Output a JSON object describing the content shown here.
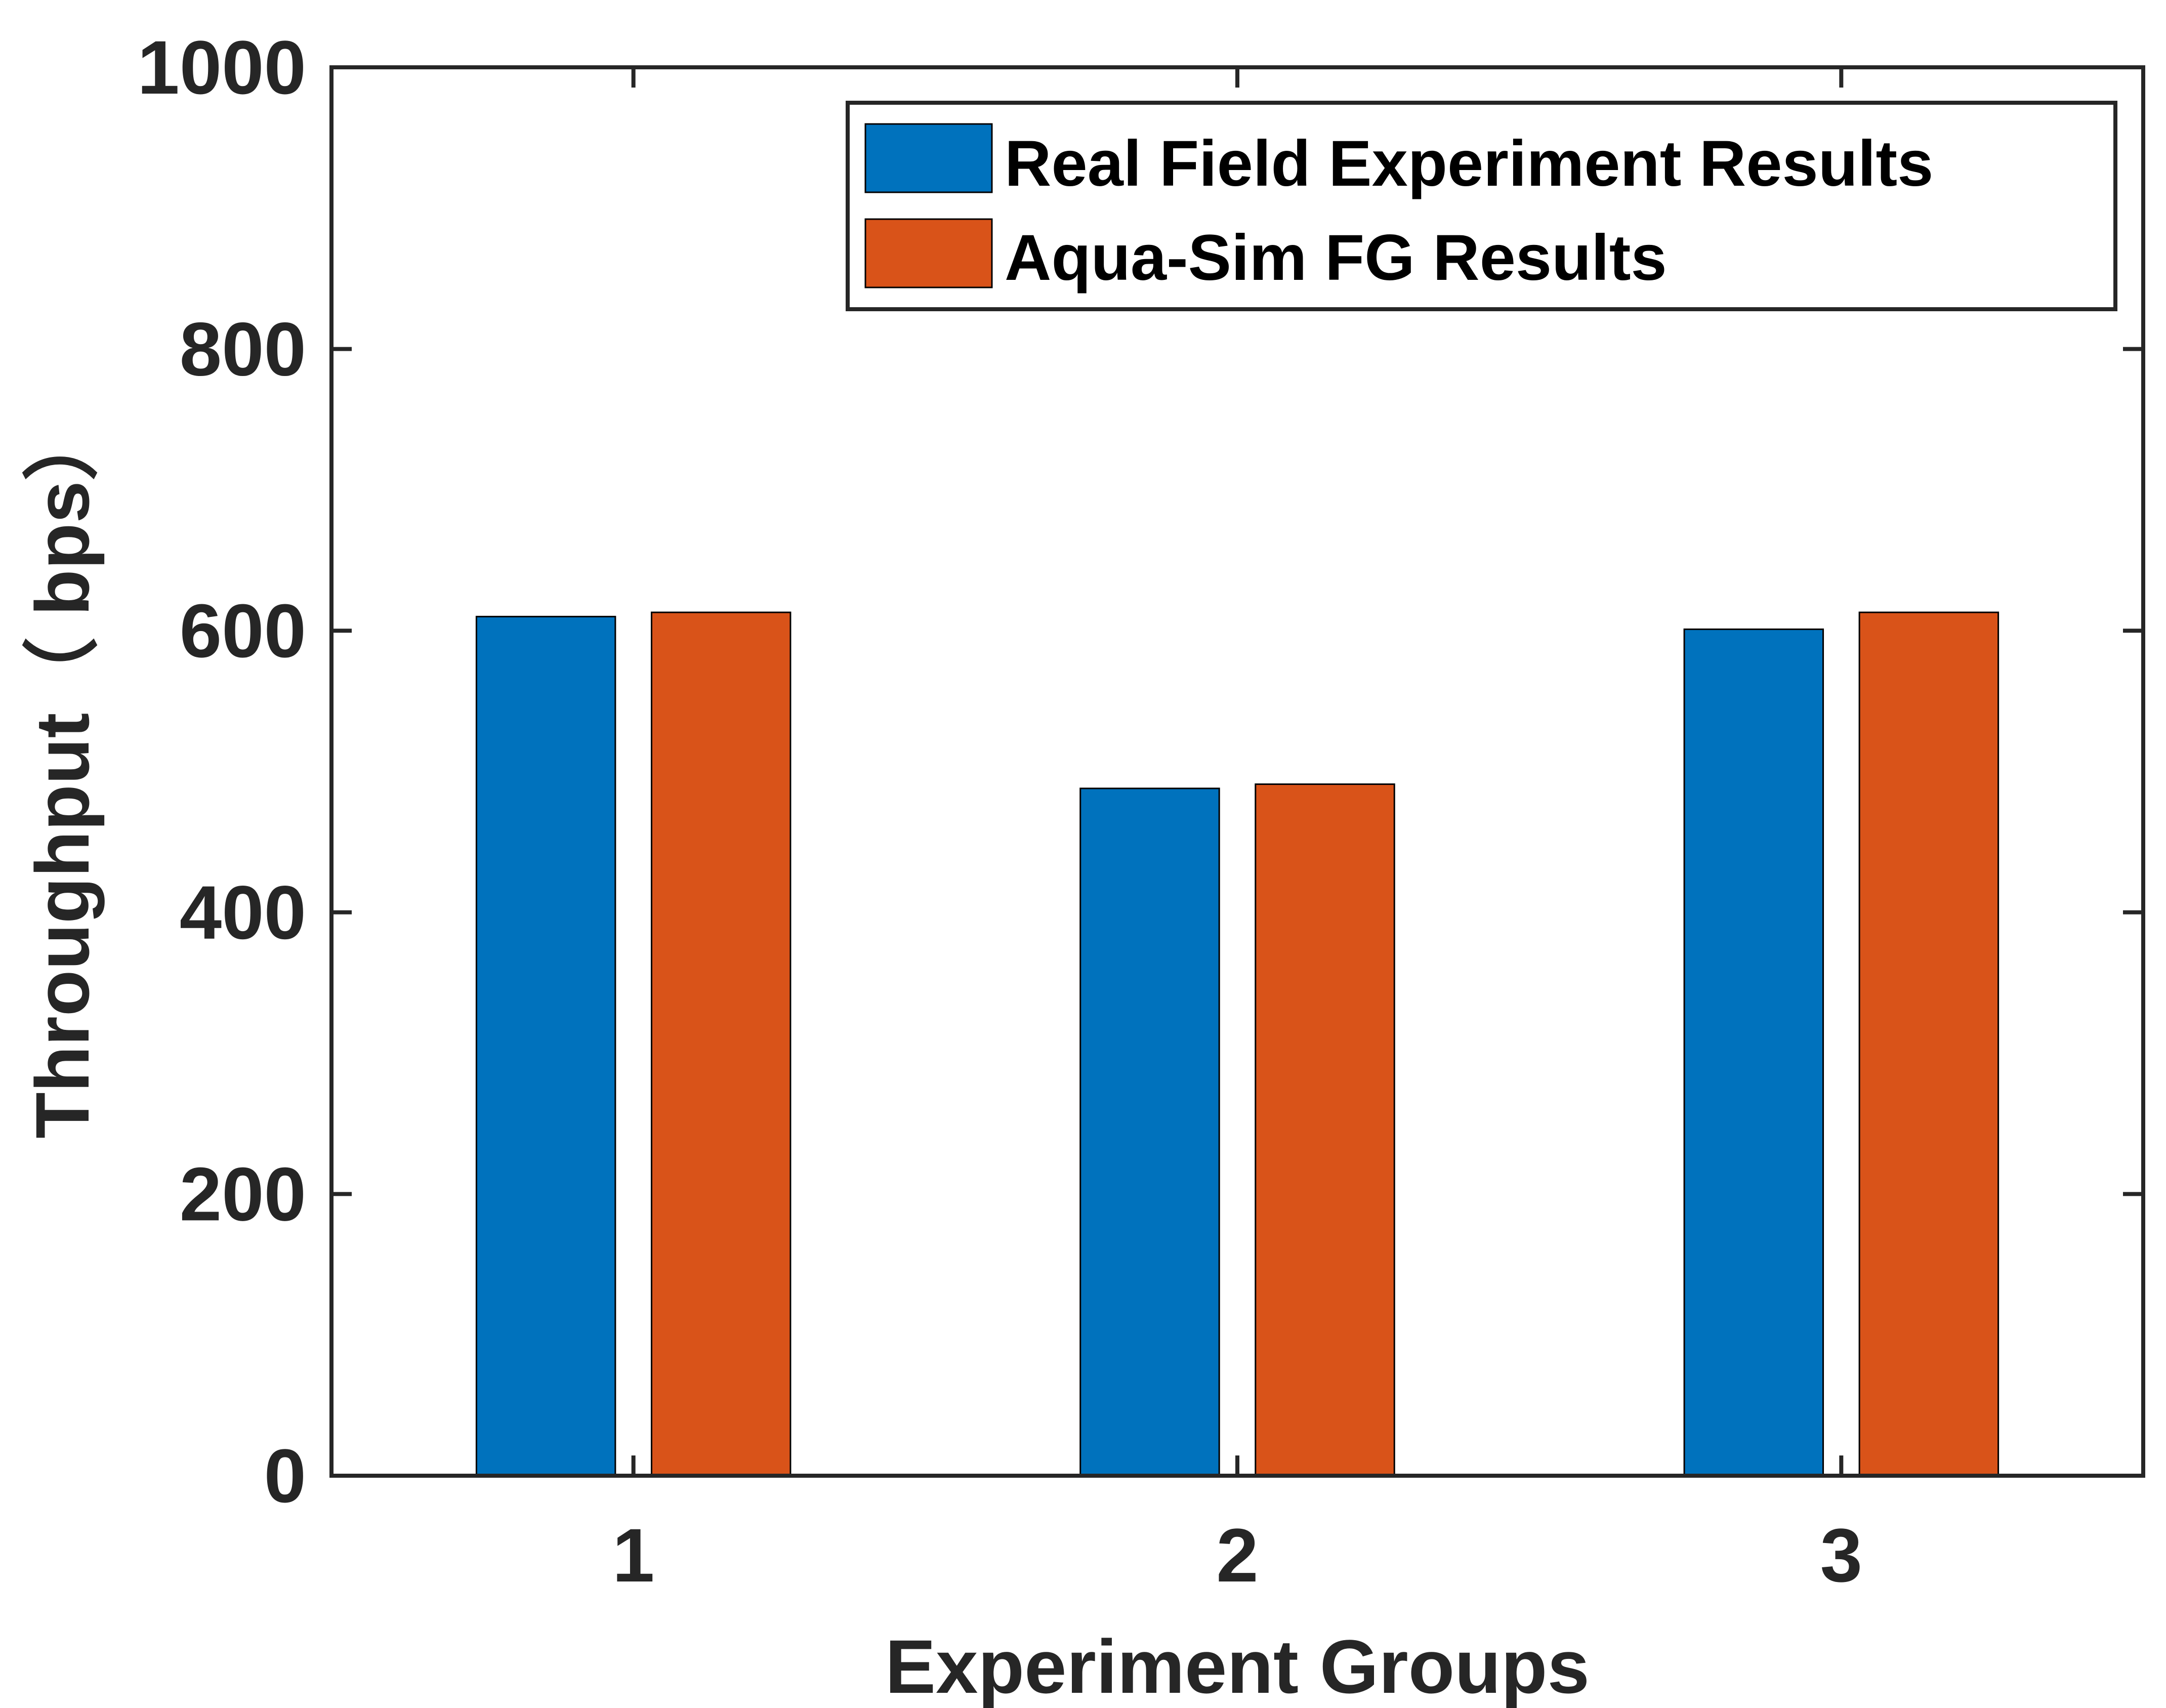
{
  "chart_data": {
    "type": "bar",
    "title": "",
    "xlabel": "Experiment Groups",
    "ylabel": "Throughput（ bps）",
    "categories": [
      "1",
      "2",
      "3"
    ],
    "series": [
      {
        "name": "Real Field Experiment Results",
        "color": "#0072BD",
        "values": [
          610,
          488,
          601
        ]
      },
      {
        "name": "Aqua-Sim FG Results",
        "color": "#D95319",
        "values": [
          613,
          491,
          613
        ]
      }
    ],
    "ylim": [
      0,
      1000
    ],
    "yticks": [
      "0",
      "200",
      "400",
      "600",
      "800",
      "1000"
    ],
    "grid": false,
    "legend_position": "top-right"
  }
}
